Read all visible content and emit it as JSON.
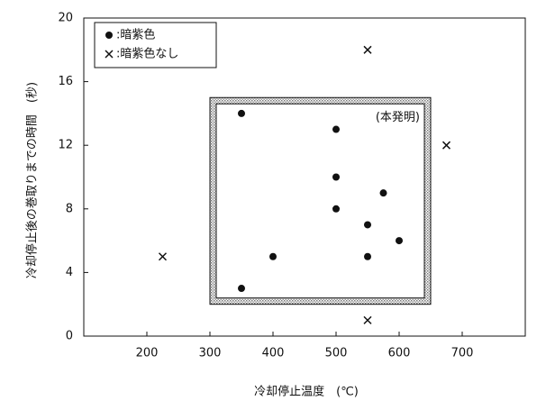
{
  "chart_data": {
    "type": "scatter",
    "xlabel": "冷却停止温度　(℃)",
    "ylabel": "冷却停止後の巻取りまでの時間　(秒)",
    "xlim": [
      100,
      800
    ],
    "xticks": [
      200,
      300,
      400,
      500,
      600,
      700
    ],
    "ylim": [
      0,
      20
    ],
    "yticks": [
      0,
      4,
      8,
      12,
      16,
      20
    ],
    "legend": "upper left",
    "region": {
      "x": [
        300,
        650
      ],
      "y": [
        2,
        15
      ],
      "label": "(本発明)"
    },
    "series": [
      {
        "name": ":暗紫色",
        "marker": "dot",
        "color": "#111111",
        "x": [
          350,
          350,
          400,
          500,
          500,
          500,
          550,
          550,
          575,
          600
        ],
        "values": [
          14,
          3,
          5,
          13,
          10,
          8,
          7,
          5,
          9,
          6
        ]
      },
      {
        "name": ":暗紫色なし",
        "marker": "cross",
        "color": "#111111",
        "x": [
          225,
          550,
          550,
          675
        ],
        "values": [
          5,
          18,
          1,
          12
        ]
      }
    ]
  }
}
